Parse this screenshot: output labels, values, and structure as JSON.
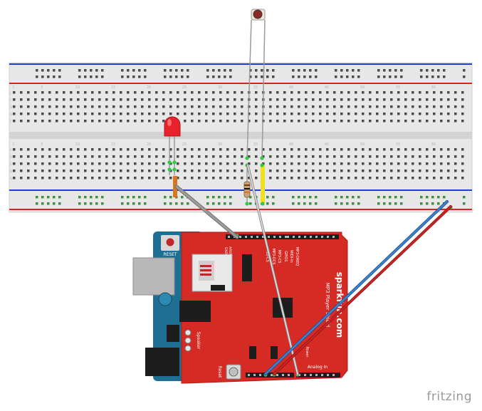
{
  "watermark": "fritzing",
  "breadboard": {
    "column_labels": [
      "1",
      "5",
      "10",
      "15",
      "20",
      "25",
      "30",
      "35",
      "40",
      "45",
      "50",
      "55",
      "60"
    ],
    "row_labels_top": [
      "J",
      "I",
      "H",
      "G",
      "F"
    ],
    "row_labels_bottom": [
      "E",
      "D",
      "C",
      "B",
      "A"
    ]
  },
  "components": {
    "led": {
      "color": "#e8222a"
    },
    "resistor": {
      "color": "#c9a27a"
    },
    "photocell": {
      "color": "#8b2a22"
    }
  },
  "arduino": {
    "reset_label": "RESET",
    "aref_label": "AREF",
    "gnd_label": "GND"
  },
  "shield": {
    "brand": "sparkfun.com",
    "title": "MP3 Player Shield",
    "speaker_label": "Speaker",
    "reset_label": "Reset",
    "power_label": "Power",
    "analog_label": "Analog In",
    "pin_labels": [
      "MP3-DREQ",
      "MIDI-In",
      "GPIO1",
      "MP3-CS",
      "MP3-DCS",
      "SD-CS"
    ]
  },
  "wires": {
    "colors": {
      "blue": "#2a6fbf",
      "red": "#b31f1f",
      "gray": "#8a8a8a",
      "orange": "#d9761f",
      "yellow": "#f0e020",
      "green_dot": "#2ecc40"
    }
  }
}
